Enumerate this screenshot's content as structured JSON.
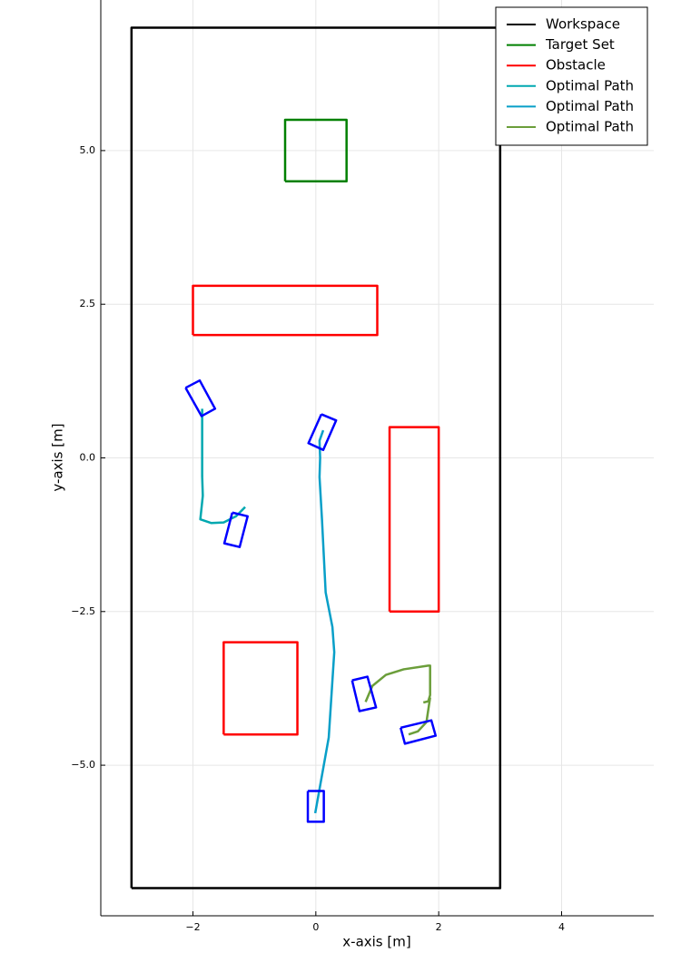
{
  "chart_data": {
    "type": "line",
    "xlabel": "x-axis [m]",
    "ylabel": "y-axis [m]",
    "xlim": [
      -3.5,
      5.5
    ],
    "ylim": [
      -7.45,
      7.45
    ],
    "xticks": [
      {
        "value": -2,
        "label": "−2"
      },
      0,
      2,
      4
    ],
    "yticks": [
      {
        "value": 5,
        "label": "5.0"
      },
      {
        "value": 2.5,
        "label": "2.5"
      },
      {
        "value": 0,
        "label": "0.0"
      },
      {
        "value": -2.5,
        "label": "−2.5"
      },
      {
        "value": -5,
        "label": "−5.0"
      }
    ],
    "grid": true,
    "legend": "upper right",
    "series": [
      {
        "name": "Workspace",
        "color": "#000000",
        "x": [
          -3,
          3,
          3,
          -3,
          -3
        ],
        "y": [
          -7,
          -7,
          7,
          7,
          -7
        ]
      },
      {
        "name": "Target Set",
        "color": "#008000",
        "x": [
          -0.5,
          0.5,
          0.5,
          -0.5,
          -0.5
        ],
        "y": [
          4.5,
          4.5,
          5.5,
          5.5,
          4.5
        ]
      },
      {
        "name": "Obstacle",
        "color": "#ff0000",
        "x": [
          -2,
          1,
          1,
          -2,
          -2,
          null,
          1.2,
          2,
          2,
          1.2,
          1.2,
          null,
          -1.5,
          -0.3,
          -0.3,
          -1.5,
          -1.5
        ],
        "y": [
          2,
          2,
          2.8,
          2.8,
          2,
          null,
          -2.5,
          -2.5,
          0.5,
          0.5,
          -2.5,
          null,
          -4.5,
          -4.5,
          -3,
          -3,
          -4.5
        ]
      },
      {
        "name": "Optimal Path",
        "color": "#00a8b0",
        "x": [
          -1.85,
          -1.85,
          -1.84,
          -1.84,
          -1.88,
          -1.7,
          -1.5,
          -1.3,
          -1.15
        ],
        "y": [
          0.8,
          -0.3,
          -0.6,
          -0.62,
          -1.0,
          -1.06,
          -1.05,
          -0.95,
          -0.8
        ]
      },
      {
        "name": "Optimal Path",
        "color": "#089fc8",
        "x": [
          0.12,
          0.06,
          0.07,
          0.06,
          0.1,
          0.16,
          0.27,
          0.3,
          0.21,
          -0.01
        ],
        "y": [
          0.45,
          0.28,
          0,
          -0.31,
          -1.0,
          -2.19,
          -2.75,
          -3.16,
          -4.55,
          -5.78
        ]
      },
      {
        "name": "Optimal Path",
        "color": "#6b9e3a",
        "x": [
          0.81,
          0.92,
          1.14,
          1.43,
          1.83,
          1.86,
          1.86,
          1.83,
          1.75,
          null,
          1.86,
          1.8,
          1.66,
          1.51
        ],
        "y": [
          -3.97,
          -3.71,
          -3.53,
          -3.44,
          -3.38,
          -3.38,
          -3.86,
          -3.96,
          -3.98,
          null,
          -3.9,
          -4.3,
          -4.45,
          -4.5
        ]
      },
      {
        "color": "#0000ff",
        "x": [
          -2.12,
          -1.89,
          -1.64,
          -1.86,
          -2.12,
          null,
          -1.36,
          -1.11,
          -1.24,
          -1.49,
          -1.36,
          null,
          0.09,
          0.33,
          0.12,
          -0.12,
          0.09,
          null,
          -0.13,
          0.13,
          0.13,
          -0.13,
          -0.13,
          null,
          0.59,
          0.84,
          0.98,
          0.71,
          0.59,
          null,
          1.38,
          1.88,
          1.95,
          1.45,
          1.38
        ],
        "y": [
          1.14,
          1.26,
          0.8,
          0.68,
          1.14,
          null,
          -0.89,
          -0.95,
          -1.45,
          -1.39,
          -0.89,
          null,
          0.71,
          0.61,
          0.13,
          0.24,
          0.71,
          null,
          -5.42,
          -5.42,
          -5.92,
          -5.92,
          -5.42,
          null,
          -3.62,
          -3.56,
          -4.06,
          -4.12,
          -3.62,
          null,
          -4.39,
          -4.27,
          -4.52,
          -4.65,
          -4.39
        ]
      }
    ]
  }
}
